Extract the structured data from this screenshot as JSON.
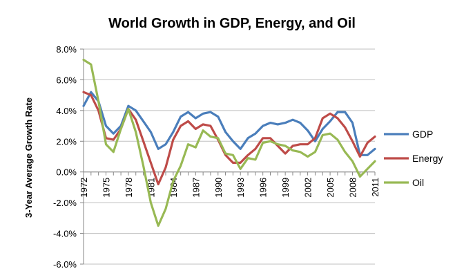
{
  "chart_data": {
    "type": "line",
    "title": "World Growth in GDP, Energy, and Oil",
    "xlabel": "",
    "ylabel": "3-Year Average Growth Rate",
    "x": [
      1972,
      1973,
      1974,
      1975,
      1976,
      1977,
      1978,
      1979,
      1980,
      1981,
      1982,
      1983,
      1984,
      1985,
      1986,
      1987,
      1988,
      1989,
      1990,
      1991,
      1992,
      1993,
      1994,
      1995,
      1996,
      1997,
      1998,
      1999,
      2000,
      2001,
      2002,
      2003,
      2004,
      2005,
      2006,
      2007,
      2008,
      2009,
      2010,
      2011
    ],
    "x_tick_labels": [
      "1972",
      "1975",
      "1978",
      "1981",
      "1984",
      "1987",
      "1990",
      "1993",
      "1996",
      "1999",
      "2002",
      "2005",
      "2008",
      "2011"
    ],
    "ylim": [
      -6.0,
      8.0
    ],
    "y_ticks": [
      8,
      6,
      4,
      2,
      0,
      -2,
      -4,
      -6
    ],
    "y_tick_labels": [
      "8.0%",
      "6.0%",
      "4.0%",
      "2.0%",
      "0.0%",
      "-2.0%",
      "-4.0%",
      "-6.0%"
    ],
    "grid": true,
    "legend_position": "right",
    "series": [
      {
        "name": "GDP",
        "color": "#4a7ebb",
        "values": [
          4.3,
          5.2,
          4.6,
          3.0,
          2.5,
          3.0,
          4.3,
          4.0,
          3.3,
          2.6,
          1.5,
          1.8,
          2.6,
          3.6,
          3.9,
          3.5,
          3.8,
          3.9,
          3.6,
          2.6,
          2.0,
          1.5,
          2.2,
          2.5,
          3.0,
          3.2,
          3.1,
          3.2,
          3.4,
          3.2,
          2.7,
          2.0,
          2.8,
          3.3,
          3.9,
          3.9,
          3.2,
          1.1,
          1.1,
          1.5
        ]
      },
      {
        "name": "Energy",
        "color": "#be4b48",
        "values": [
          5.2,
          5.0,
          4.0,
          2.2,
          2.1,
          2.8,
          4.1,
          3.4,
          2.0,
          0.6,
          -0.8,
          0.3,
          2.1,
          3.0,
          3.3,
          2.8,
          3.1,
          3.0,
          2.1,
          1.1,
          0.6,
          0.6,
          1.1,
          1.5,
          2.2,
          2.2,
          1.7,
          1.2,
          1.7,
          1.8,
          1.8,
          2.2,
          3.5,
          3.8,
          3.5,
          2.9,
          2.0,
          1.0,
          1.9,
          2.3
        ]
      },
      {
        "name": "Oil",
        "color": "#98b954",
        "values": [
          7.3,
          7.0,
          4.6,
          1.8,
          1.3,
          2.8,
          4.1,
          2.6,
          0.4,
          -2.0,
          -3.5,
          -2.4,
          -0.6,
          0.4,
          1.8,
          1.6,
          2.7,
          2.3,
          2.2,
          1.2,
          1.1,
          0.2,
          0.9,
          0.8,
          1.9,
          2.0,
          1.8,
          1.7,
          1.4,
          1.3,
          1.0,
          1.3,
          2.4,
          2.5,
          2.1,
          1.3,
          0.7,
          -0.3,
          0.2,
          0.7
        ]
      }
    ]
  }
}
